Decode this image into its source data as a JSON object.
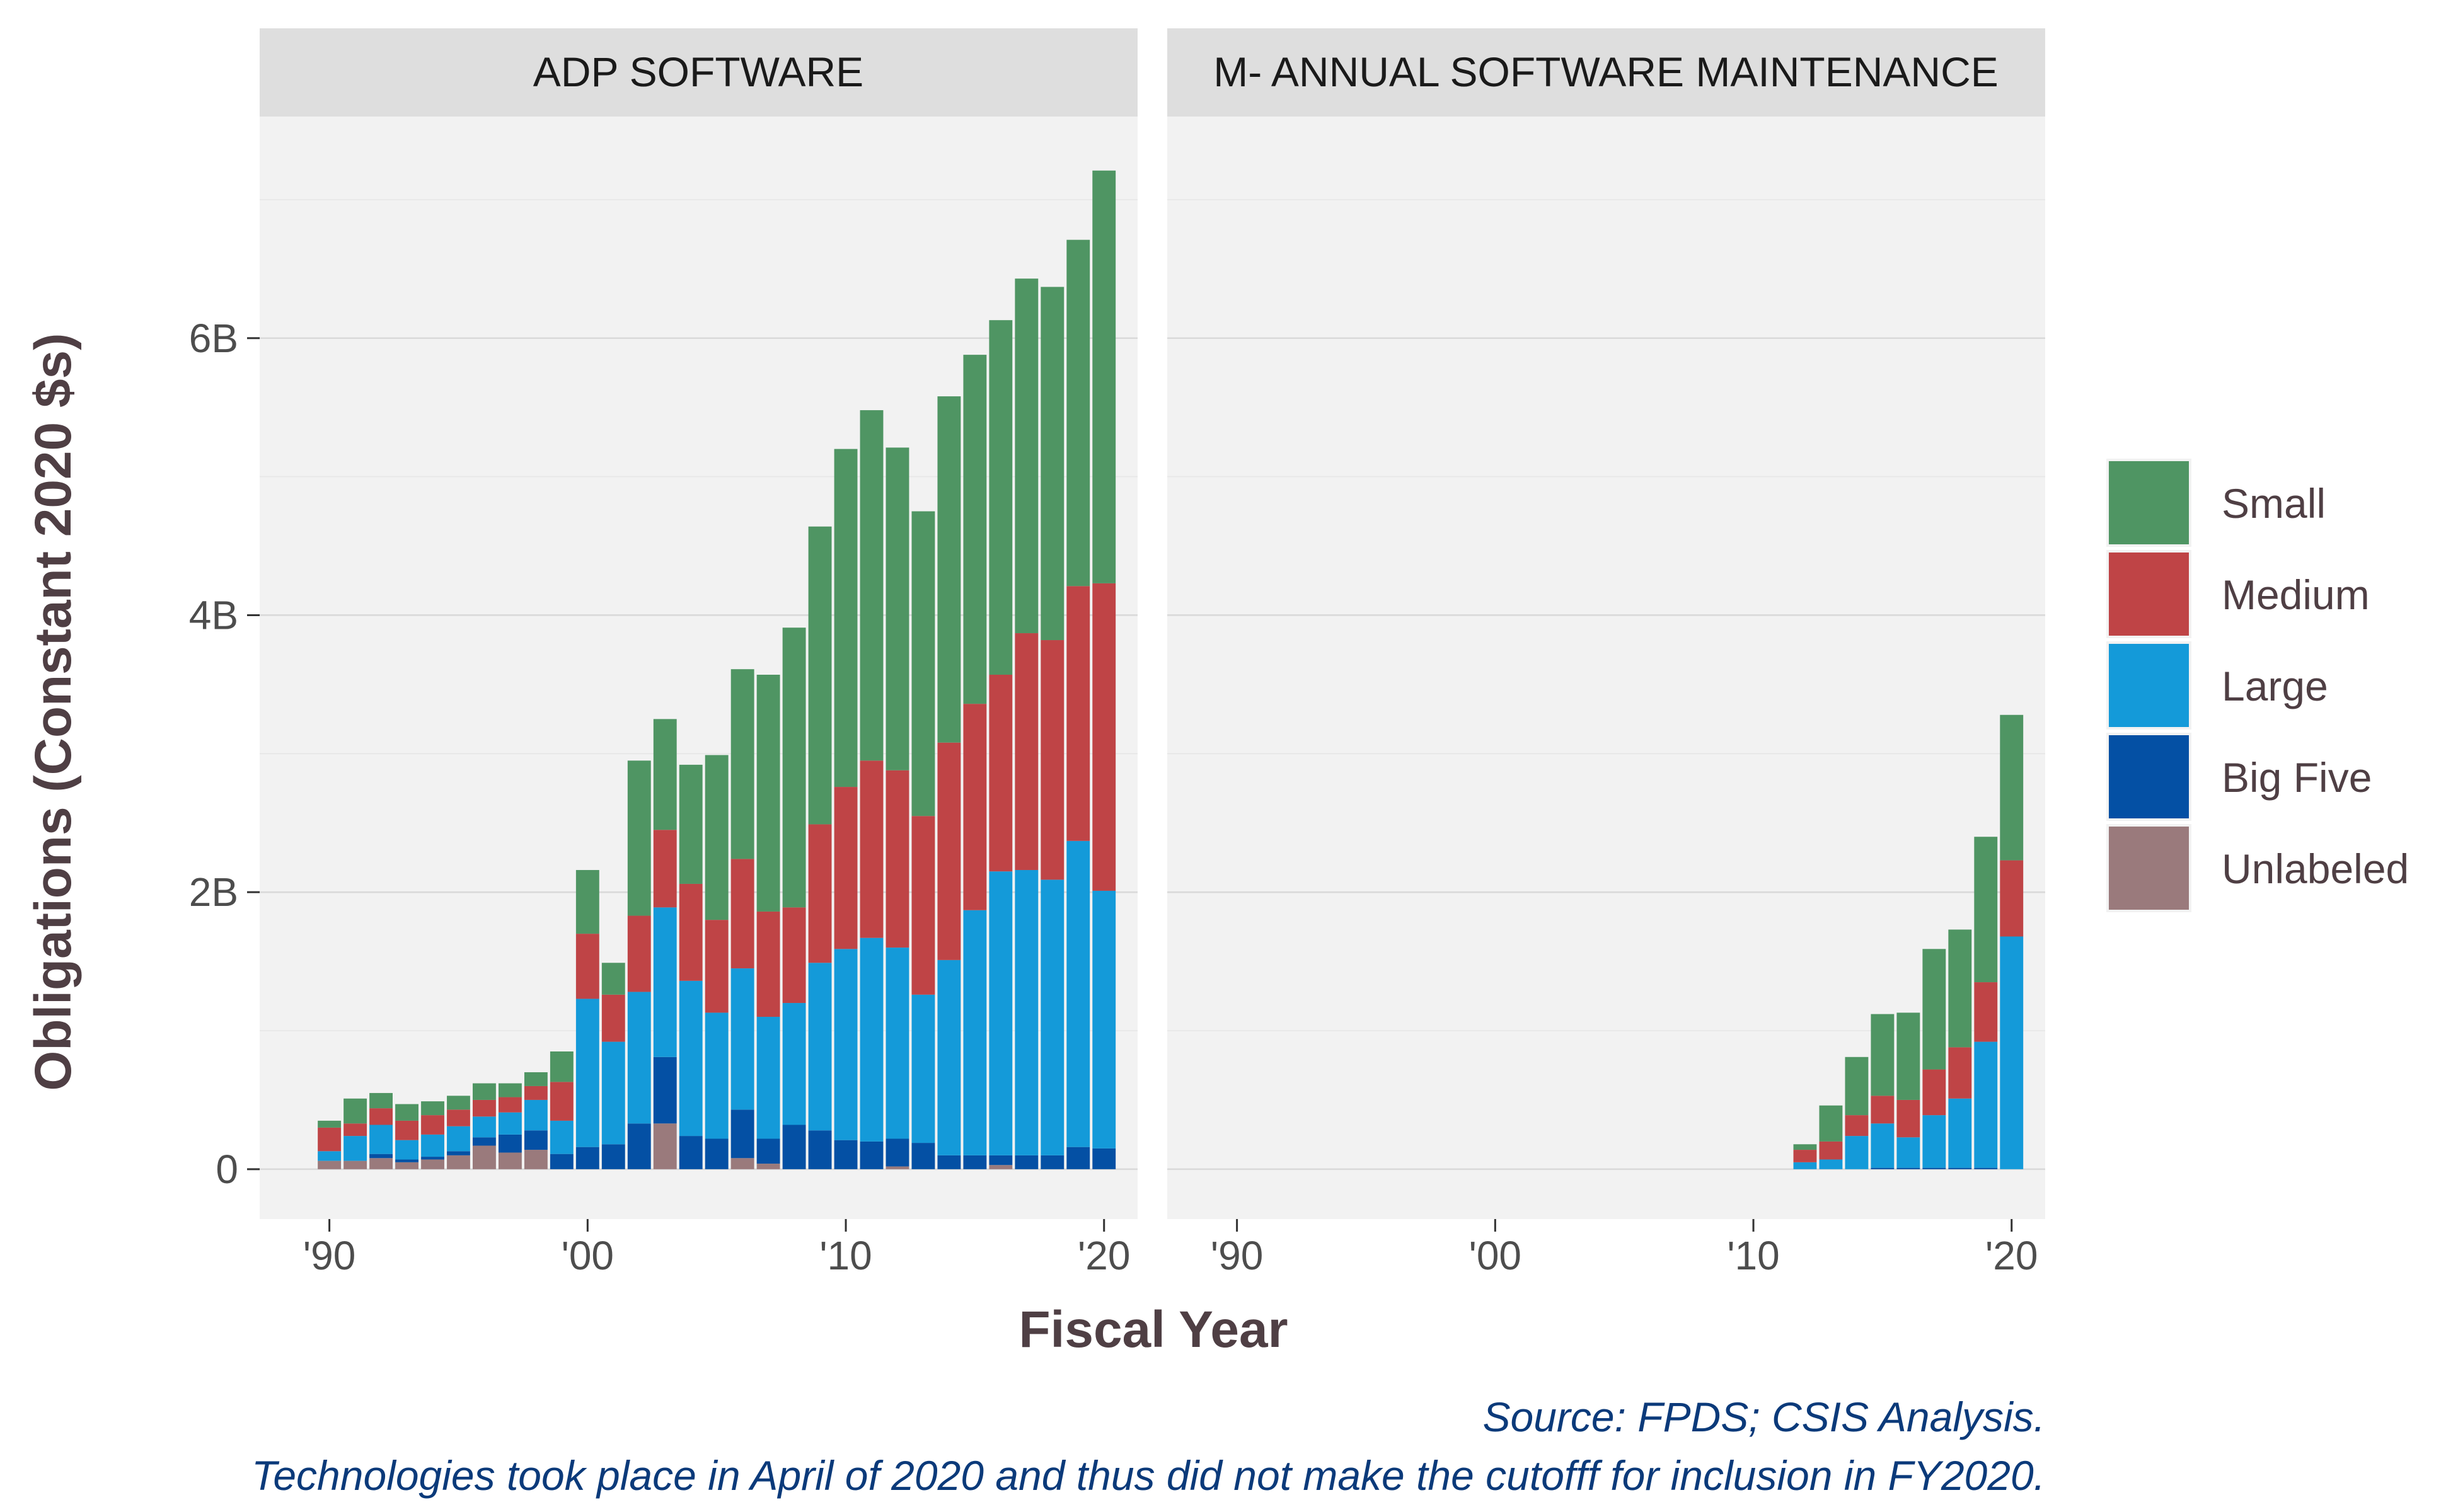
{
  "chart_data": {
    "type": "bar",
    "stacked": true,
    "panels": [
      {
        "name": "ADP SOFTWARE",
        "years": [
          1990,
          1991,
          1992,
          1993,
          1994,
          1995,
          1996,
          1997,
          1998,
          1999,
          2000,
          2001,
          2002,
          2003,
          2004,
          2005,
          2006,
          2007,
          2008,
          2009,
          2010,
          2011,
          2012,
          2013,
          2014,
          2015,
          2016,
          2017,
          2018,
          2019,
          2020
        ],
        "series": [
          {
            "name": "Unlabeled",
            "values": [
              0.06,
              0.06,
              0.08,
              0.05,
              0.07,
              0.1,
              0.17,
              0.12,
              0.14,
              0.0,
              0.0,
              0.0,
              0.0,
              0.33,
              0.0,
              0.0,
              0.08,
              0.04,
              0.0,
              0.0,
              0.0,
              0.0,
              0.02,
              0.0,
              0.0,
              0.0,
              0.03,
              0.0,
              0.0,
              0.0,
              0.0
            ]
          },
          {
            "name": "Big Five",
            "values": [
              0.0,
              0.0,
              0.03,
              0.02,
              0.02,
              0.03,
              0.06,
              0.13,
              0.14,
              0.11,
              0.16,
              0.18,
              0.33,
              0.48,
              0.24,
              0.22,
              0.35,
              0.18,
              0.32,
              0.28,
              0.21,
              0.2,
              0.2,
              0.19,
              0.1,
              0.1,
              0.07,
              0.1,
              0.1,
              0.16,
              0.15
            ]
          },
          {
            "name": "Large",
            "values": [
              0.07,
              0.18,
              0.21,
              0.14,
              0.16,
              0.18,
              0.15,
              0.16,
              0.22,
              0.24,
              1.07,
              0.74,
              0.95,
              1.08,
              1.12,
              0.91,
              1.02,
              0.88,
              0.88,
              1.21,
              1.38,
              1.47,
              1.38,
              1.07,
              1.41,
              1.77,
              2.05,
              2.06,
              1.99,
              2.21,
              1.86
            ]
          },
          {
            "name": "Medium",
            "values": [
              0.17,
              0.09,
              0.12,
              0.14,
              0.14,
              0.12,
              0.12,
              0.11,
              0.1,
              0.28,
              0.47,
              0.34,
              0.55,
              0.56,
              0.7,
              0.67,
              0.79,
              0.76,
              0.69,
              1.0,
              1.17,
              1.28,
              1.28,
              1.29,
              1.57,
              1.49,
              1.42,
              1.71,
              1.73,
              1.84,
              2.22
            ]
          },
          {
            "name": "Small",
            "values": [
              0.05,
              0.18,
              0.11,
              0.12,
              0.1,
              0.1,
              0.12,
              0.1,
              0.1,
              0.22,
              0.46,
              0.23,
              1.12,
              0.8,
              0.86,
              1.19,
              1.37,
              1.71,
              2.02,
              2.15,
              2.44,
              2.53,
              2.33,
              2.2,
              2.5,
              2.52,
              2.56,
              2.56,
              2.55,
              2.5,
              2.98
            ]
          }
        ]
      },
      {
        "name": "M- ANNUAL SOFTWARE MAINTENANCE",
        "years": [
          2012,
          2013,
          2014,
          2015,
          2016,
          2017,
          2018,
          2019,
          2020
        ],
        "series": [
          {
            "name": "Unlabeled",
            "values": [
              0,
              0,
              0,
              0,
              0,
              0,
              0,
              0,
              0
            ]
          },
          {
            "name": "Big Five",
            "values": [
              0.0,
              0.0,
              0.0,
              0.01,
              0.01,
              0.01,
              0.01,
              0.01,
              0.0
            ]
          },
          {
            "name": "Large",
            "values": [
              0.05,
              0.07,
              0.24,
              0.32,
              0.22,
              0.38,
              0.5,
              0.91,
              1.68
            ]
          },
          {
            "name": "Medium",
            "values": [
              0.09,
              0.13,
              0.15,
              0.2,
              0.27,
              0.33,
              0.37,
              0.43,
              0.55
            ]
          },
          {
            "name": "Small",
            "values": [
              0.04,
              0.26,
              0.42,
              0.59,
              0.63,
              0.87,
              0.85,
              1.05,
              1.05
            ]
          }
        ]
      }
    ],
    "colors": {
      "Small": "#4f9563",
      "Medium": "#bf4446",
      "Large": "#149ad9",
      "Big Five": "#0450a4",
      "Unlabeled": "#9a7a7c"
    },
    "xlabel": "Fiscal Year",
    "ylabel": "Obligations (Constant 2020 $s)",
    "xlim": [
      1987.3,
      2021.3
    ],
    "ylim": [
      -0.36,
      7.6
    ],
    "x_ticks": [
      1990,
      2000,
      2010,
      2020
    ],
    "x_tick_labels": [
      "'90",
      "'00",
      "'10",
      "'20"
    ],
    "y_ticks": [
      0,
      2,
      4,
      6
    ],
    "y_tick_labels": [
      "0",
      "2B",
      "4B",
      "6B"
    ],
    "legend": {
      "position": "right",
      "entries": [
        "Small",
        "Medium",
        "Large",
        "Big Five",
        "Unlabeled"
      ]
    },
    "captions": [
      "Source: FPDS; CSIS Analysis.",
      "Technologies took place in April of 2020 and thus did not make the cutofff for inclusion in FY2020."
    ],
    "grid": true
  }
}
